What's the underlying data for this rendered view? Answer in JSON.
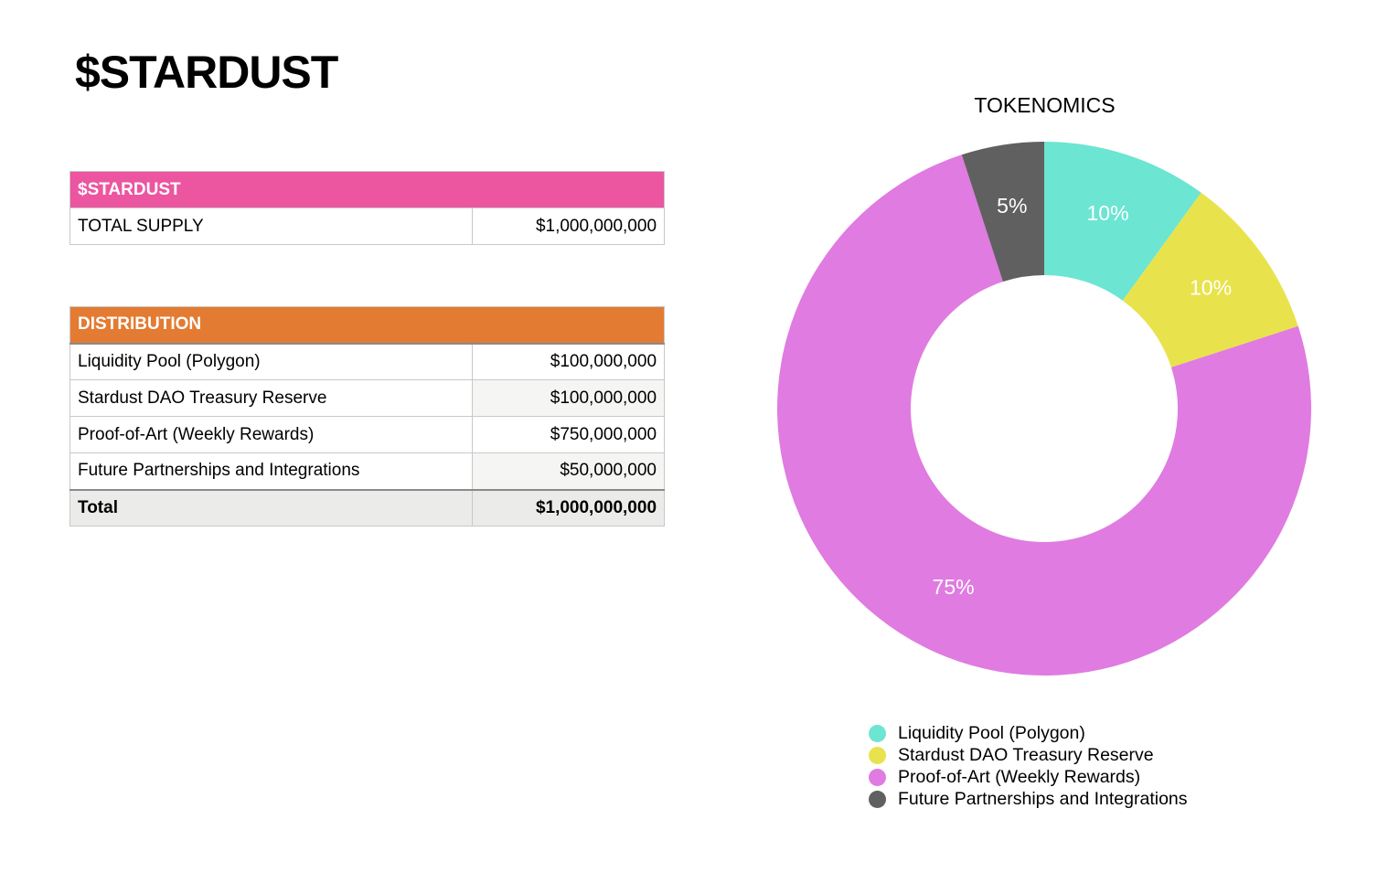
{
  "page_title": "$STARDUST",
  "supply_table": {
    "header": "$STARDUST",
    "rows": [
      {
        "label": "TOTAL SUPPLY",
        "value": "$1,000,000,000"
      }
    ]
  },
  "distribution_table": {
    "header": "DISTRIBUTION",
    "rows": [
      {
        "label": "Liquidity Pool (Polygon)",
        "value": "$100,000,000"
      },
      {
        "label": "Stardust DAO Treasury Reserve",
        "value": "$100,000,000"
      },
      {
        "label": "Proof-of-Art (Weekly Rewards)",
        "value": "$750,000,000"
      },
      {
        "label": "Future Partnerships and Integrations",
        "value": "$50,000,000"
      }
    ],
    "total": {
      "label": "Total",
      "value": "$1,000,000,000"
    }
  },
  "chart_data": {
    "type": "pie",
    "title": "TOKENOMICS",
    "donut": true,
    "categories": [
      "Liquidity Pool (Polygon)",
      "Stardust DAO Treasury Reserve",
      "Proof-of-Art (Weekly Rewards)",
      "Future Partnerships and Integrations"
    ],
    "values": [
      100000000,
      100000000,
      750000000,
      50000000
    ],
    "data_labels": [
      "10%",
      "10%",
      "75%",
      "5%"
    ],
    "colors": [
      "#6ce5d2",
      "#e8e34d",
      "#e07be1",
      "#606060"
    ],
    "legend": "bottom"
  }
}
